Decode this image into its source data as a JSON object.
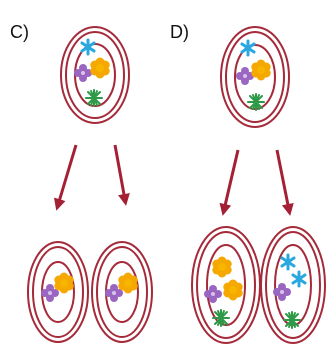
{
  "options": [
    {
      "label": "C)"
    },
    {
      "label": "D)"
    }
  ]
}
